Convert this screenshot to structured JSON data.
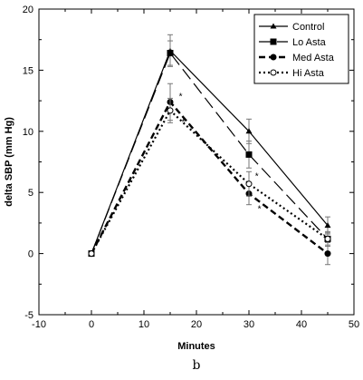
{
  "chart_data": {
    "type": "line",
    "xlabel": "Minutes",
    "ylabel": "delta SBP (mm Hg)",
    "xlim": [
      -10,
      50
    ],
    "ylim": [
      -5,
      20
    ],
    "xticks": [
      -10,
      0,
      10,
      20,
      30,
      40,
      50
    ],
    "yticks": [
      -5,
      0,
      5,
      10,
      15,
      20
    ],
    "grid": false,
    "legend_position": "top-right",
    "panel_label": "b",
    "x": [
      0,
      15,
      30,
      45
    ],
    "series": [
      {
        "name": "Control",
        "values": [
          0,
          16.6,
          10.0,
          2.3
        ],
        "errors": [
          0,
          1.3,
          1.0,
          0.7
        ],
        "line": "solid",
        "marker": "triangle"
      },
      {
        "name": "Lo Asta",
        "values": [
          0,
          16.4,
          8.1,
          1.2
        ],
        "errors": [
          0,
          1.0,
          1.1,
          0.6
        ],
        "line": "longdash",
        "marker": "square"
      },
      {
        "name": "Med Asta",
        "values": [
          0,
          12.4,
          4.9,
          0.0
        ],
        "errors": [
          0,
          1.5,
          0.9,
          0.9
        ],
        "line": "dash",
        "marker": "circle"
      },
      {
        "name": "Hi Asta",
        "values": [
          0,
          11.7,
          5.7,
          1.2
        ],
        "errors": [
          0,
          1.0,
          1.0,
          0.5
        ],
        "line": "dot",
        "marker": "circle-open"
      }
    ],
    "annotations": [
      {
        "text": "*",
        "x": 17,
        "y": 12.9
      },
      {
        "text": "*",
        "x": 17.5,
        "y": 10.8
      },
      {
        "text": "*",
        "x": 31.5,
        "y": 6.4
      },
      {
        "text": "*",
        "x": 32,
        "y": 3.7
      }
    ]
  }
}
